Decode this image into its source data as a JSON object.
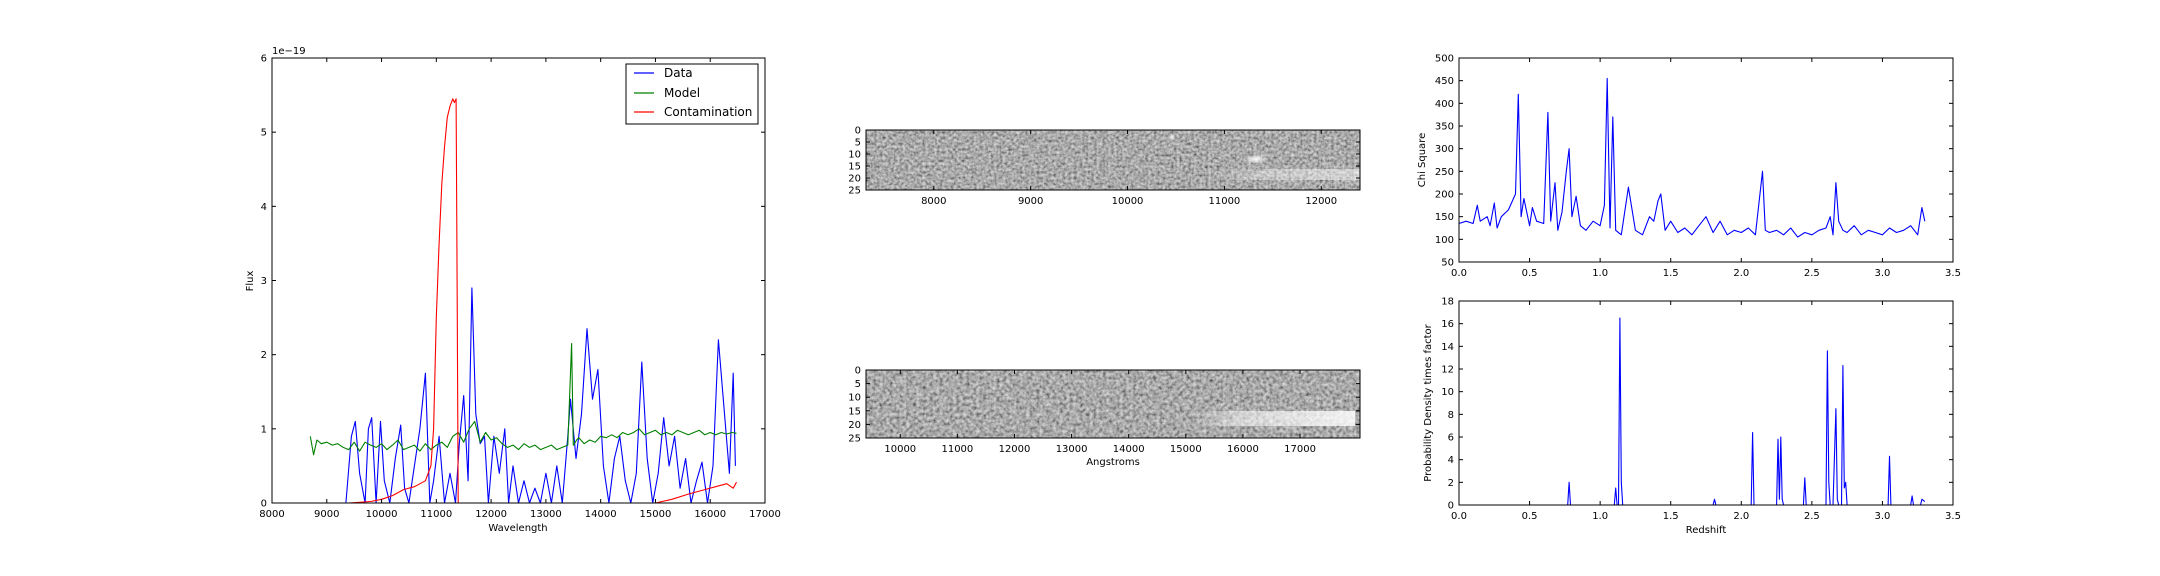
{
  "colors": {
    "data": "#0000ff",
    "model": "#008000",
    "contamination": "#ff0000",
    "axes": "#000000",
    "background": "#ffffff"
  },
  "chart_data": [
    {
      "id": "spectrum",
      "type": "line",
      "xlabel": "Wavelength",
      "ylabel": "Flux",
      "y_offset_label": "1e−19",
      "xlim": [
        8000,
        17000
      ],
      "ylim": [
        0,
        6
      ],
      "xticks": [
        "8000",
        "9000",
        "10000",
        "11000",
        "12000",
        "13000",
        "14000",
        "15000",
        "16000",
        "17000"
      ],
      "yticks": [
        "0",
        "1",
        "2",
        "3",
        "4",
        "5",
        "6"
      ],
      "legend_position": "top-right",
      "legend": [
        "Data",
        "Model",
        "Contamination"
      ],
      "series": [
        {
          "name": "Data",
          "color": "#0000ff",
          "x": [
            9350,
            9450,
            9520,
            9600,
            9700,
            9760,
            9820,
            9900,
            9980,
            10050,
            10150,
            10250,
            10350,
            10420,
            10500,
            10600,
            10700,
            10800,
            10880,
            10950,
            11050,
            11150,
            11250,
            11350,
            11420,
            11500,
            11580,
            11650,
            11720,
            11800,
            11880,
            11950,
            12050,
            12150,
            12250,
            12320,
            12400,
            12500,
            12600,
            12700,
            12800,
            12900,
            13000,
            13100,
            13200,
            13300,
            13400,
            13450,
            13550,
            13650,
            13750,
            13850,
            13950,
            14050,
            14150,
            14250,
            14350,
            14450,
            14550,
            14650,
            14750,
            14850,
            14950,
            15050,
            15150,
            15250,
            15350,
            15450,
            15550,
            15650,
            15750,
            15850,
            15950,
            16050,
            16150,
            16250,
            16350,
            16420,
            16460
          ],
          "y": [
            0,
            0.9,
            1.1,
            0.4,
            0,
            1.0,
            1.15,
            0,
            1.1,
            0.3,
            0,
            0.6,
            1.05,
            0.2,
            0,
            0.5,
            1.0,
            1.75,
            0,
            0.3,
            0.9,
            0,
            0.4,
            0,
            0.8,
            1.45,
            0.3,
            2.9,
            1.2,
            0.8,
            0.9,
            0,
            0.9,
            0.4,
            1.0,
            0,
            0.5,
            0,
            0.3,
            0,
            0.2,
            0,
            0.4,
            0,
            0.5,
            0,
            0.9,
            1.4,
            0.6,
            1.2,
            2.35,
            1.4,
            1.8,
            0.5,
            0,
            0.6,
            0.9,
            0.3,
            0,
            0.4,
            1.9,
            0.6,
            0,
            0.4,
            1.15,
            0.5,
            0.9,
            0.2,
            0.6,
            0,
            0.3,
            0.55,
            0,
            0.5,
            2.2,
            1.3,
            0.4,
            1.75,
            0.5
          ]
        },
        {
          "name": "Model",
          "color": "#008000",
          "x": [
            8700,
            8760,
            8820,
            8900,
            9000,
            9100,
            9200,
            9300,
            9400,
            9500,
            9600,
            9700,
            9800,
            9900,
            10000,
            10100,
            10200,
            10300,
            10400,
            10500,
            10600,
            10700,
            10800,
            10900,
            11000,
            11100,
            11200,
            11300,
            11400,
            11500,
            11600,
            11700,
            11800,
            11900,
            12000,
            12100,
            12200,
            12300,
            12400,
            12500,
            12600,
            12700,
            12800,
            12900,
            13000,
            13100,
            13200,
            13300,
            13400,
            13470,
            13500,
            13520,
            13560,
            13600,
            13700,
            13800,
            13900,
            14000,
            14100,
            14200,
            14300,
            14400,
            14500,
            14600,
            14700,
            14800,
            14900,
            15000,
            15100,
            15200,
            15300,
            15400,
            15500,
            15600,
            15700,
            15800,
            15900,
            16000,
            16100,
            16200,
            16300,
            16400,
            16480
          ],
          "y": [
            0.9,
            0.65,
            0.85,
            0.8,
            0.82,
            0.78,
            0.8,
            0.75,
            0.72,
            0.82,
            0.7,
            0.82,
            0.78,
            0.75,
            0.8,
            0.72,
            0.78,
            0.85,
            0.72,
            0.75,
            0.78,
            0.7,
            0.8,
            0.72,
            0.78,
            0.82,
            0.75,
            0.9,
            0.95,
            0.82,
            1.0,
            1.1,
            0.82,
            0.95,
            0.85,
            0.88,
            0.8,
            0.75,
            0.78,
            0.72,
            0.8,
            0.75,
            0.78,
            0.72,
            0.75,
            0.78,
            0.72,
            0.75,
            0.78,
            2.15,
            0.78,
            0.8,
            0.85,
            0.88,
            0.8,
            0.85,
            0.82,
            0.9,
            0.88,
            0.92,
            0.88,
            0.95,
            0.92,
            0.95,
            1.0,
            0.92,
            0.95,
            0.98,
            0.92,
            0.95,
            0.92,
            0.98,
            0.95,
            0.92,
            0.95,
            0.98,
            0.92,
            0.95,
            0.92,
            0.95,
            0.93,
            0.95,
            0.94
          ]
        },
        {
          "name": "Contamination",
          "color": "#ff0000",
          "x": [
            9000,
            9400,
            9800,
            10000,
            10200,
            10400,
            10600,
            10800,
            10900,
            10950,
            11000,
            11050,
            11100,
            11150,
            11200,
            11250,
            11300,
            11330,
            11360,
            11380,
            11400,
            11500,
            12000,
            13000,
            14000,
            15000,
            15300,
            15600,
            15900,
            16100,
            16300,
            16420,
            16480
          ],
          "y": [
            0,
            0,
            0.02,
            0.05,
            0.1,
            0.18,
            0.22,
            0.3,
            0.5,
            1.0,
            2.5,
            3.5,
            4.3,
            4.8,
            5.2,
            5.35,
            5.45,
            5.4,
            5.45,
            3.0,
            0,
            0,
            0,
            0,
            0,
            0,
            0.05,
            0.12,
            0.18,
            0.22,
            0.26,
            0.2,
            0.28
          ]
        }
      ]
    },
    {
      "id": "spectrum-image-top",
      "type": "heatmap",
      "xlim": [
        7300,
        12400
      ],
      "ylim": [
        25,
        0
      ],
      "xticks": [
        "8000",
        "9000",
        "10000",
        "11000",
        "12000"
      ],
      "yticks": [
        "0",
        "5",
        "10",
        "15",
        "20",
        "25"
      ],
      "xlabel": "",
      "colormap": "gray"
    },
    {
      "id": "spectrum-image-bottom",
      "type": "heatmap",
      "xlim": [
        9400,
        18050
      ],
      "ylim": [
        25,
        0
      ],
      "xticks": [
        "10000",
        "11000",
        "12000",
        "13000",
        "14000",
        "15000",
        "16000",
        "17000"
      ],
      "yticks": [
        "0",
        "5",
        "10",
        "15",
        "20",
        "25"
      ],
      "xlabel": "Angstroms",
      "colormap": "gray"
    },
    {
      "id": "chi-square",
      "type": "line",
      "xlabel": "",
      "ylabel": "Chi Square",
      "xlim": [
        0,
        3.5
      ],
      "ylim": [
        50,
        500
      ],
      "xticks": [
        "0.0",
        "0.5",
        "1.0",
        "1.5",
        "2.0",
        "2.5",
        "3.0",
        "3.5"
      ],
      "yticks": [
        "50",
        "100",
        "150",
        "200",
        "250",
        "300",
        "350",
        "400",
        "450",
        "500"
      ],
      "series": [
        {
          "color": "#0000ff",
          "x": [
            0,
            0.05,
            0.1,
            0.13,
            0.15,
            0.2,
            0.22,
            0.25,
            0.27,
            0.3,
            0.35,
            0.4,
            0.42,
            0.44,
            0.46,
            0.5,
            0.52,
            0.55,
            0.6,
            0.63,
            0.65,
            0.68,
            0.7,
            0.73,
            0.76,
            0.78,
            0.8,
            0.83,
            0.86,
            0.9,
            0.95,
            1.0,
            1.03,
            1.05,
            1.07,
            1.09,
            1.11,
            1.15,
            1.2,
            1.25,
            1.3,
            1.35,
            1.38,
            1.41,
            1.43,
            1.46,
            1.5,
            1.55,
            1.6,
            1.65,
            1.7,
            1.75,
            1.8,
            1.85,
            1.9,
            1.95,
            2.0,
            2.05,
            2.1,
            2.15,
            2.17,
            2.2,
            2.25,
            2.3,
            2.35,
            2.4,
            2.45,
            2.5,
            2.55,
            2.6,
            2.63,
            2.65,
            2.67,
            2.69,
            2.72,
            2.75,
            2.8,
            2.85,
            2.9,
            2.95,
            3.0,
            3.05,
            3.1,
            3.15,
            3.2,
            3.25,
            3.28,
            3.3
          ],
          "y": [
            135,
            140,
            135,
            175,
            140,
            150,
            130,
            180,
            125,
            150,
            165,
            200,
            420,
            150,
            190,
            130,
            170,
            140,
            135,
            380,
            140,
            225,
            120,
            160,
            250,
            300,
            150,
            195,
            130,
            120,
            140,
            130,
            175,
            455,
            125,
            370,
            120,
            110,
            215,
            120,
            110,
            150,
            140,
            185,
            200,
            120,
            140,
            115,
            125,
            110,
            130,
            150,
            115,
            140,
            110,
            120,
            115,
            125,
            110,
            250,
            120,
            115,
            120,
            110,
            125,
            105,
            115,
            110,
            120,
            125,
            150,
            110,
            225,
            140,
            120,
            115,
            130,
            110,
            120,
            115,
            110,
            125,
            115,
            120,
            130,
            110,
            170,
            140
          ]
        }
      ]
    },
    {
      "id": "probability-density",
      "type": "line",
      "xlabel": "Redshift",
      "ylabel": "Probability Density times factor",
      "xlim": [
        0,
        3.5
      ],
      "ylim": [
        0,
        18
      ],
      "xticks": [
        "0.0",
        "0.5",
        "1.0",
        "1.5",
        "2.0",
        "2.5",
        "3.0",
        "3.5"
      ],
      "yticks": [
        "0",
        "2",
        "4",
        "6",
        "8",
        "10",
        "12",
        "14",
        "16",
        "18"
      ],
      "series": [
        {
          "color": "#0000ff",
          "x": [
            0,
            0.77,
            0.78,
            0.79,
            1.1,
            1.11,
            1.12,
            1.13,
            1.14,
            1.15,
            1.16,
            1.17,
            1.8,
            1.81,
            1.82,
            2.07,
            2.08,
            2.09,
            2.25,
            2.26,
            2.27,
            2.28,
            2.29,
            2.3,
            2.44,
            2.45,
            2.46,
            2.6,
            2.61,
            2.62,
            2.63,
            2.65,
            2.67,
            2.68,
            2.69,
            2.71,
            2.72,
            2.73,
            2.74,
            2.75,
            2.76,
            3.04,
            3.05,
            3.06,
            3.2,
            3.21,
            3.22,
            3.27,
            3.28,
            3.3
          ],
          "y": [
            0,
            0,
            2.0,
            0,
            0,
            1.5,
            0,
            0,
            16.5,
            2,
            0,
            0,
            0,
            0.5,
            0,
            0,
            6.4,
            0,
            0,
            5.8,
            0.5,
            6.0,
            0.5,
            0,
            0,
            2.4,
            0,
            0,
            13.6,
            2,
            0,
            0,
            8.5,
            0.5,
            0,
            0,
            12.3,
            1.5,
            2.0,
            0,
            0,
            0,
            4.3,
            0,
            0,
            0.8,
            0,
            0,
            0.5,
            0.3
          ]
        }
      ]
    }
  ]
}
